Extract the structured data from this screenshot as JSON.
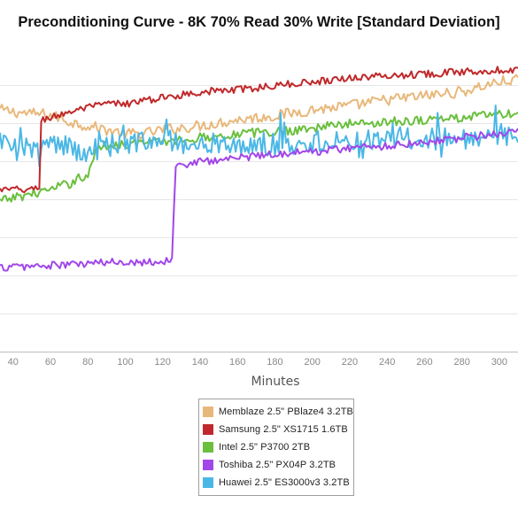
{
  "chart_data": {
    "type": "line",
    "title": "Preconditioning Curve - 8K 70% Read 30% Write [Standard Deviation]",
    "xlabel": "Minutes",
    "ylabel": "",
    "x_ticks": [
      40,
      60,
      80,
      100,
      120,
      140,
      160,
      180,
      200,
      220,
      240,
      260,
      280,
      300
    ],
    "xlim": [
      33,
      310
    ],
    "ylim": [
      0,
      7.6
    ],
    "grid": true,
    "legend_position": "bottom-center",
    "series": [
      {
        "name": "Memblaze 2.5\" PBlaze4 3.2TB",
        "color": "#e8b87b",
        "points": [
          [
            33,
            6.05
          ],
          [
            40,
            6.0
          ],
          [
            50,
            5.95
          ],
          [
            55,
            5.95
          ],
          [
            60,
            5.9
          ],
          [
            65,
            5.85
          ],
          [
            70,
            5.75
          ],
          [
            80,
            5.65
          ],
          [
            90,
            5.55
          ],
          [
            100,
            5.45
          ],
          [
            110,
            5.45
          ],
          [
            120,
            5.55
          ],
          [
            130,
            5.6
          ],
          [
            140,
            5.65
          ],
          [
            160,
            5.8
          ],
          [
            180,
            5.9
          ],
          [
            200,
            6.05
          ],
          [
            220,
            6.15
          ],
          [
            240,
            6.3
          ],
          [
            260,
            6.4
          ],
          [
            280,
            6.5
          ],
          [
            300,
            6.75
          ],
          [
            310,
            6.8
          ]
        ]
      },
      {
        "name": "Samsung 2.5\" XS1715 1.6TB",
        "color": "#c0292b",
        "points": [
          [
            33,
            4.05
          ],
          [
            40,
            4.05
          ],
          [
            50,
            4.05
          ],
          [
            54,
            4.1
          ],
          [
            55,
            5.8
          ],
          [
            60,
            5.85
          ],
          [
            70,
            6.0
          ],
          [
            80,
            6.1
          ],
          [
            90,
            6.2
          ],
          [
            100,
            6.2
          ],
          [
            120,
            6.35
          ],
          [
            140,
            6.5
          ],
          [
            160,
            6.55
          ],
          [
            180,
            6.65
          ],
          [
            200,
            6.75
          ],
          [
            220,
            6.85
          ],
          [
            240,
            6.9
          ],
          [
            260,
            6.95
          ],
          [
            280,
            7.0
          ],
          [
            300,
            7.05
          ],
          [
            310,
            7.05
          ]
        ]
      },
      {
        "name": "Intel 2.5\" P3700 2TB",
        "color": "#6abf3d",
        "points": [
          [
            33,
            3.75
          ],
          [
            40,
            3.85
          ],
          [
            50,
            3.95
          ],
          [
            60,
            4.05
          ],
          [
            70,
            4.2
          ],
          [
            75,
            4.35
          ],
          [
            80,
            4.4
          ],
          [
            85,
            5.1
          ],
          [
            90,
            5.15
          ],
          [
            100,
            5.2
          ],
          [
            120,
            5.25
          ],
          [
            140,
            5.35
          ],
          [
            160,
            5.45
          ],
          [
            180,
            5.5
          ],
          [
            200,
            5.6
          ],
          [
            220,
            5.7
          ],
          [
            240,
            5.75
          ],
          [
            260,
            5.8
          ],
          [
            280,
            5.85
          ],
          [
            300,
            5.95
          ],
          [
            310,
            5.9
          ]
        ]
      },
      {
        "name": "Toshiba 2.5\" PX04P 3.2TB",
        "color": "#a146e8",
        "points": [
          [
            33,
            2.1
          ],
          [
            40,
            2.12
          ],
          [
            60,
            2.15
          ],
          [
            80,
            2.2
          ],
          [
            100,
            2.25
          ],
          [
            120,
            2.25
          ],
          [
            125,
            2.3
          ],
          [
            127,
            4.7
          ],
          [
            130,
            4.65
          ],
          [
            140,
            4.75
          ],
          [
            160,
            4.85
          ],
          [
            180,
            4.95
          ],
          [
            200,
            5.0
          ],
          [
            220,
            5.1
          ],
          [
            240,
            5.15
          ],
          [
            260,
            5.25
          ],
          [
            280,
            5.35
          ],
          [
            300,
            5.45
          ],
          [
            310,
            5.5
          ]
        ]
      },
      {
        "name": "Huawei 2.5\" ES3000v3 3.2TB",
        "color": "#4bb7e6",
        "points": [
          [
            33,
            5.3
          ],
          [
            40,
            5.0
          ],
          [
            50,
            5.15
          ],
          [
            60,
            5.2
          ],
          [
            70,
            5.1
          ],
          [
            80,
            5.05
          ],
          [
            90,
            5.15
          ],
          [
            100,
            5.2
          ],
          [
            120,
            5.25
          ],
          [
            140,
            5.2
          ],
          [
            160,
            5.15
          ],
          [
            180,
            5.2
          ],
          [
            200,
            5.25
          ],
          [
            220,
            5.3
          ],
          [
            240,
            5.3
          ],
          [
            260,
            5.35
          ],
          [
            280,
            5.35
          ],
          [
            300,
            5.4
          ],
          [
            310,
            5.45
          ]
        ]
      }
    ]
  }
}
